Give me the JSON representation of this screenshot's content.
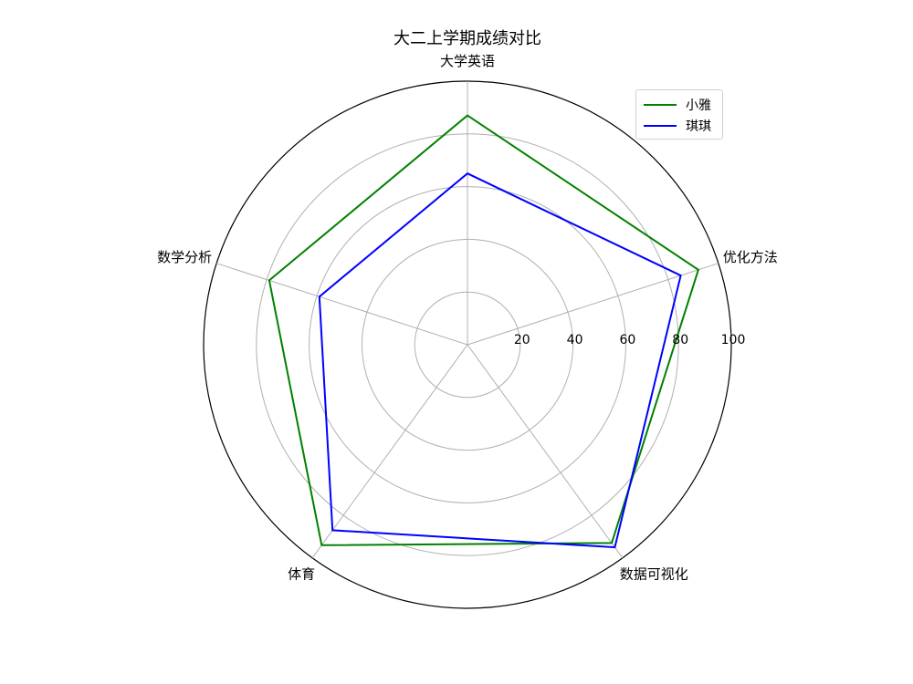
{
  "chart_data": {
    "type": "radar",
    "title": "大二上学期成绩对比",
    "categories": [
      "大学英语",
      "优化方法",
      "数据可视化",
      "体育",
      "数学分析"
    ],
    "series": [
      {
        "name": "小雅",
        "values": [
          87,
          92,
          93,
          94,
          79
        ],
        "color": "#008000"
      },
      {
        "name": "琪琪",
        "values": [
          65,
          85,
          95,
          87,
          59
        ],
        "color": "#0000ff"
      }
    ],
    "r_ticks": [
      20,
      40,
      60,
      80,
      100
    ],
    "r_tick_labels": [
      "20",
      "40",
      "60",
      "80",
      "100"
    ],
    "rlim": [
      0,
      100
    ],
    "grid": true,
    "legend_position": "top-right"
  }
}
